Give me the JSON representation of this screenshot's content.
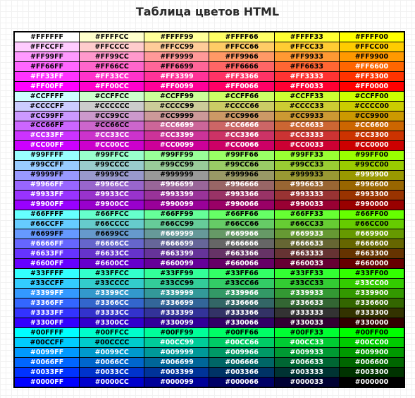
{
  "title": "Таблица цветов HTML",
  "colors": [
    "#FFFFFF",
    "#FFFFCC",
    "#FFFF99",
    "#FFFF66",
    "#FFFF33",
    "#FFFF00",
    "#FFCCFF",
    "#FFCCCC",
    "#FFCC99",
    "#FFCC66",
    "#FFCC33",
    "#FFCC00",
    "#FF99FF",
    "#FF99CC",
    "#FF9999",
    "#FF9966",
    "#FF9933",
    "#FF9900",
    "#FF66FF",
    "#FF66CC",
    "#FF6699",
    "#FF6666",
    "#FF6633",
    "#FF6600",
    "#FF33FF",
    "#FF33CC",
    "#FF3399",
    "#FF3366",
    "#FF3333",
    "#FF3300",
    "#FF00FF",
    "#FF00CC",
    "#FF0099",
    "#FF0066",
    "#FF0033",
    "#FF0000",
    "#CCFFFF",
    "#CCFFCC",
    "#CCFF99",
    "#CCFF66",
    "#CCFF33",
    "#CCFF00",
    "#CCCCFF",
    "#CCCCCC",
    "#CCCC99",
    "#CCCC66",
    "#CCCC33",
    "#CCCC00",
    "#CC99FF",
    "#CC99CC",
    "#CC9999",
    "#CC9966",
    "#CC9933",
    "#CC9900",
    "#CC66FF",
    "#CC66CC",
    "#CC6699",
    "#CC6666",
    "#CC6633",
    "#CC6600",
    "#CC33FF",
    "#CC33CC",
    "#CC3399",
    "#CC3366",
    "#CC3333",
    "#CC3300",
    "#CC00FF",
    "#CC00CC",
    "#CC0099",
    "#CC0066",
    "#CC0033",
    "#CC0000",
    "#99FFFF",
    "#99FFCC",
    "#99FF99",
    "#99FF66",
    "#99FF33",
    "#99FF00",
    "#99CCFF",
    "#99CCCC",
    "#99CC99",
    "#99CC66",
    "#99CC33",
    "#99CC00",
    "#9999FF",
    "#9999CC",
    "#999999",
    "#999966",
    "#999933",
    "#999900",
    "#9966FF",
    "#9966CC",
    "#996699",
    "#996666",
    "#996633",
    "#996600",
    "#9933FF",
    "#9933CC",
    "#993399",
    "#993366",
    "#993333",
    "#993300",
    "#9900FF",
    "#9900CC",
    "#990099",
    "#990066",
    "#990033",
    "#990000",
    "#66FFFF",
    "#66FFCC",
    "#66FF99",
    "#66FF66",
    "#66FF33",
    "#66FF00",
    "#66CCFF",
    "#66CCCC",
    "#66CC99",
    "#66CC66",
    "#66CC33",
    "#66CC00",
    "#6699FF",
    "#6699CC",
    "#669999",
    "#669966",
    "#669933",
    "#669900",
    "#6666FF",
    "#6666CC",
    "#666699",
    "#666666",
    "#666633",
    "#666600",
    "#6633FF",
    "#6633CC",
    "#663399",
    "#663366",
    "#663333",
    "#663300",
    "#6600FF",
    "#6600CC",
    "#660099",
    "#660066",
    "#660033",
    "#660000",
    "#33FFFF",
    "#33FFCC",
    "#33FF99",
    "#33FF66",
    "#33FF33",
    "#33FF00",
    "#33CCFF",
    "#33CCCC",
    "#33CC99",
    "#33CC66",
    "#33CC33",
    "#33CC00",
    "#3399FF",
    "#3399CC",
    "#339999",
    "#339966",
    "#339933",
    "#339900",
    "#3366FF",
    "#3366CC",
    "#336699",
    "#336666",
    "#336633",
    "#336600",
    "#3333FF",
    "#3333CC",
    "#333399",
    "#333366",
    "#333333",
    "#333300",
    "#3300FF",
    "#3300CC",
    "#330099",
    "#330066",
    "#330033",
    "#330000",
    "#00FFFF",
    "#00FFCC",
    "#00FF99",
    "#00FF66",
    "#00FF33",
    "#00FF00",
    "#00CCFF",
    "#00CCCC",
    "#00CC99",
    "#00CC66",
    "#00CC33",
    "#00CC00",
    "#0099FF",
    "#0099CC",
    "#009999",
    "#009966",
    "#009933",
    "#009900",
    "#0066FF",
    "#0066CC",
    "#006699",
    "#006666",
    "#006633",
    "#006600",
    "#0033FF",
    "#0033CC",
    "#003399",
    "#003366",
    "#003333",
    "#003300",
    "#0000FF",
    "#0000CC",
    "#000099",
    "#000066",
    "#000033",
    "#000000"
  ]
}
